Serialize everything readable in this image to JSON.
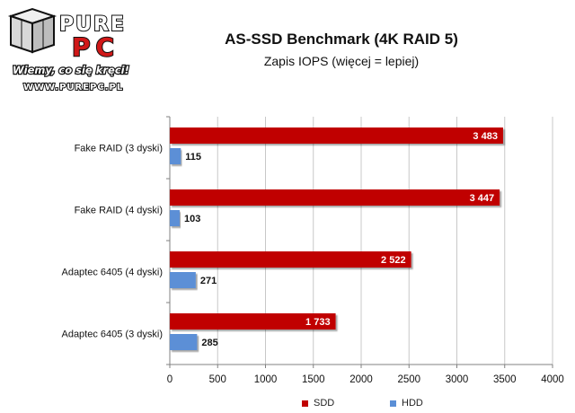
{
  "logo": {
    "brand_top": "PURE",
    "brand_bottom": "PC",
    "slogan": "Wiemy, co się kręci!",
    "url": "WWW.PUREPC.PL"
  },
  "colors": {
    "ssd": "#c00000",
    "hdd": "#5b8fd6",
    "grid": "#c8c8c8",
    "axis": "#808080"
  },
  "chart_data": {
    "type": "bar",
    "orientation": "horizontal",
    "title": "AS-SSD Benchmark (4K RAID 5)",
    "subtitle": "Zapis IOPS (więcej = lepiej)",
    "categories": [
      "Fake RAID (3 dyski)",
      "Fake RAID (4 dyski)",
      "Adaptec 6405 (4 dyski)",
      "Adaptec 6405 (3 dyski)"
    ],
    "series": [
      {
        "name": "SDD",
        "values": [
          3483,
          3447,
          2522,
          1733
        ],
        "labels": [
          "3 483",
          "3 447",
          "2 522",
          "1 733"
        ]
      },
      {
        "name": "HDD",
        "values": [
          115,
          103,
          271,
          285
        ],
        "labels": [
          "115",
          "103",
          "271",
          "285"
        ]
      }
    ],
    "xlim": [
      0,
      4000
    ],
    "xticks": [
      0,
      500,
      1000,
      1500,
      2000,
      2500,
      3000,
      3500,
      4000
    ],
    "grid": true,
    "legend_position": "bottom"
  }
}
